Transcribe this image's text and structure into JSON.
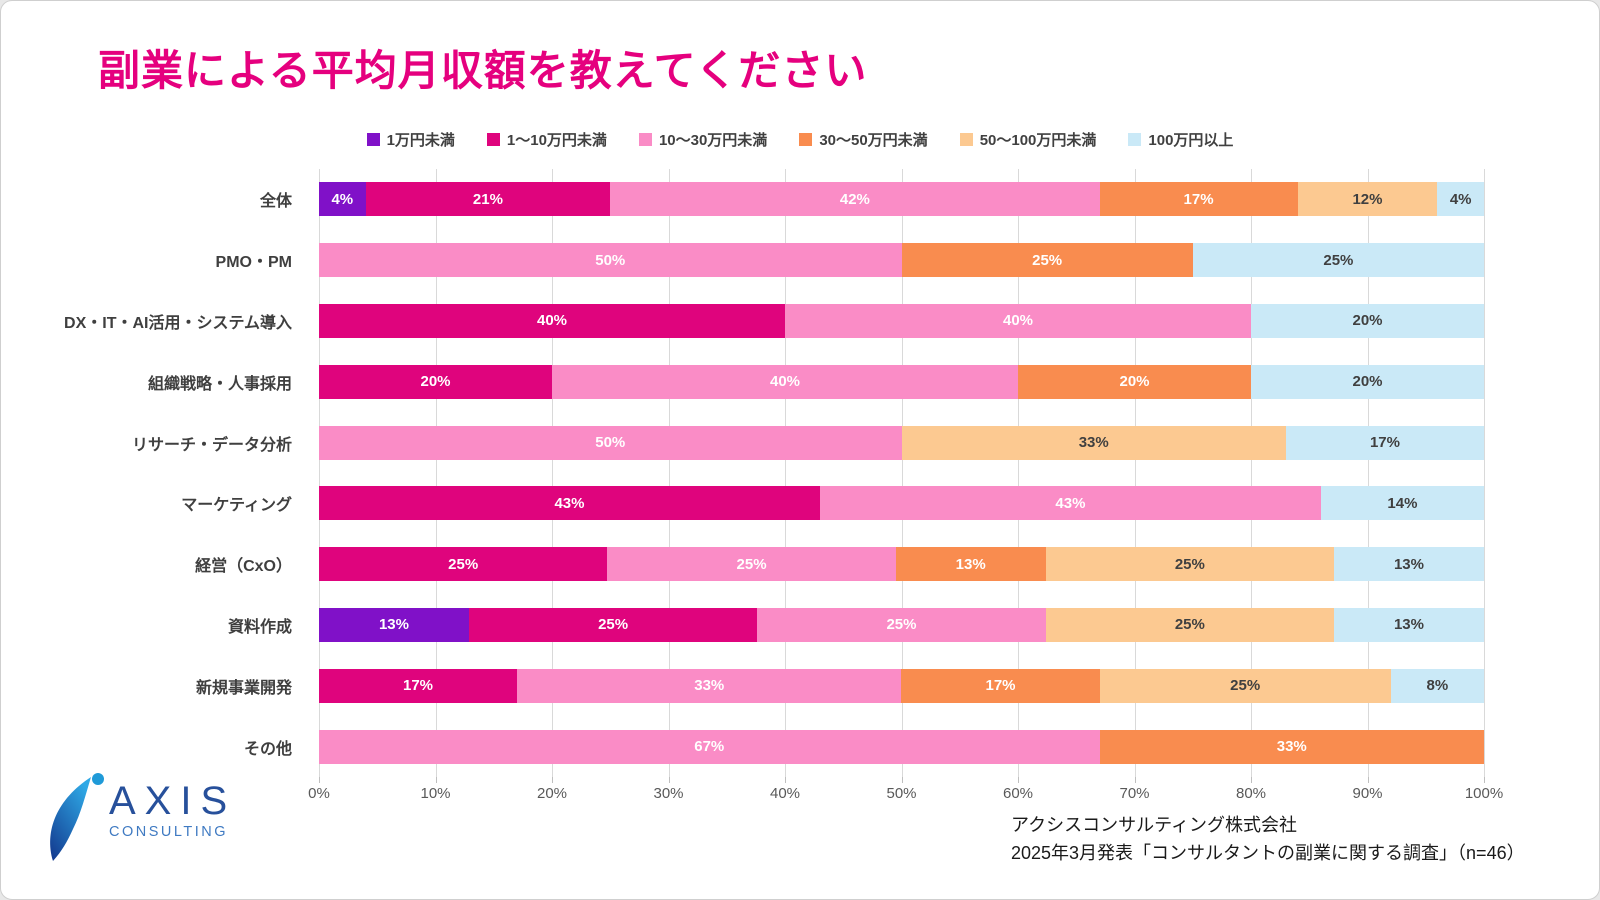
{
  "title": "副業による平均月収額を教えてください",
  "title_color": "#E5007E",
  "chart_data": {
    "type": "bar",
    "stacked": true,
    "orientation": "horizontal",
    "title": "副業による平均月収額を教えてください",
    "unit": "%",
    "xlim": [
      0,
      100
    ],
    "x_ticks": [
      "0%",
      "10%",
      "20%",
      "30%",
      "40%",
      "50%",
      "60%",
      "70%",
      "80%",
      "90%",
      "100%"
    ],
    "grid": "vertical",
    "legend_position": "top",
    "categories": [
      "全体",
      "PMO・PM",
      "DX・IT・AI活用・システム導入",
      "組織戦略・人事採用",
      "リサーチ・データ分析",
      "マーケティング",
      "経営（CxO）",
      "資料作成",
      "新規事業開発",
      "その他"
    ],
    "series": [
      {
        "name": "1万円未満",
        "color": "#8011C8",
        "label_color": "#ffffff",
        "values": [
          4,
          0,
          0,
          0,
          0,
          0,
          0,
          13,
          0,
          0
        ]
      },
      {
        "name": "1〜10万円未満",
        "color": "#DF047D",
        "label_color": "#ffffff",
        "values": [
          21,
          0,
          40,
          20,
          0,
          43,
          25,
          25,
          17,
          0
        ]
      },
      {
        "name": "10〜30万円未満",
        "color": "#FA8CC6",
        "label_color": "#ffffff",
        "values": [
          42,
          50,
          40,
          40,
          50,
          43,
          25,
          25,
          33,
          67
        ]
      },
      {
        "name": "30〜50万円未満",
        "color": "#F98C4F",
        "label_color": "#ffffff",
        "values": [
          17,
          25,
          0,
          20,
          0,
          0,
          13,
          0,
          17,
          33
        ]
      },
      {
        "name": "50〜100万円未満",
        "color": "#FCC991",
        "label_color": "#404040",
        "values": [
          12,
          0,
          0,
          0,
          33,
          0,
          25,
          25,
          25,
          0
        ]
      },
      {
        "name": "100万円以上",
        "color": "#CAE9F7",
        "label_color": "#404040",
        "values": [
          4,
          25,
          20,
          20,
          17,
          14,
          13,
          13,
          8,
          0
        ]
      }
    ]
  },
  "footer": {
    "logo": {
      "main": "AXIS",
      "sub": "CONSULTING"
    },
    "source_line1": "アクシスコンサルティング株式会社",
    "source_line2": "2025年3月発表「コンサルタントの副業に関する調査」（n=46）"
  }
}
